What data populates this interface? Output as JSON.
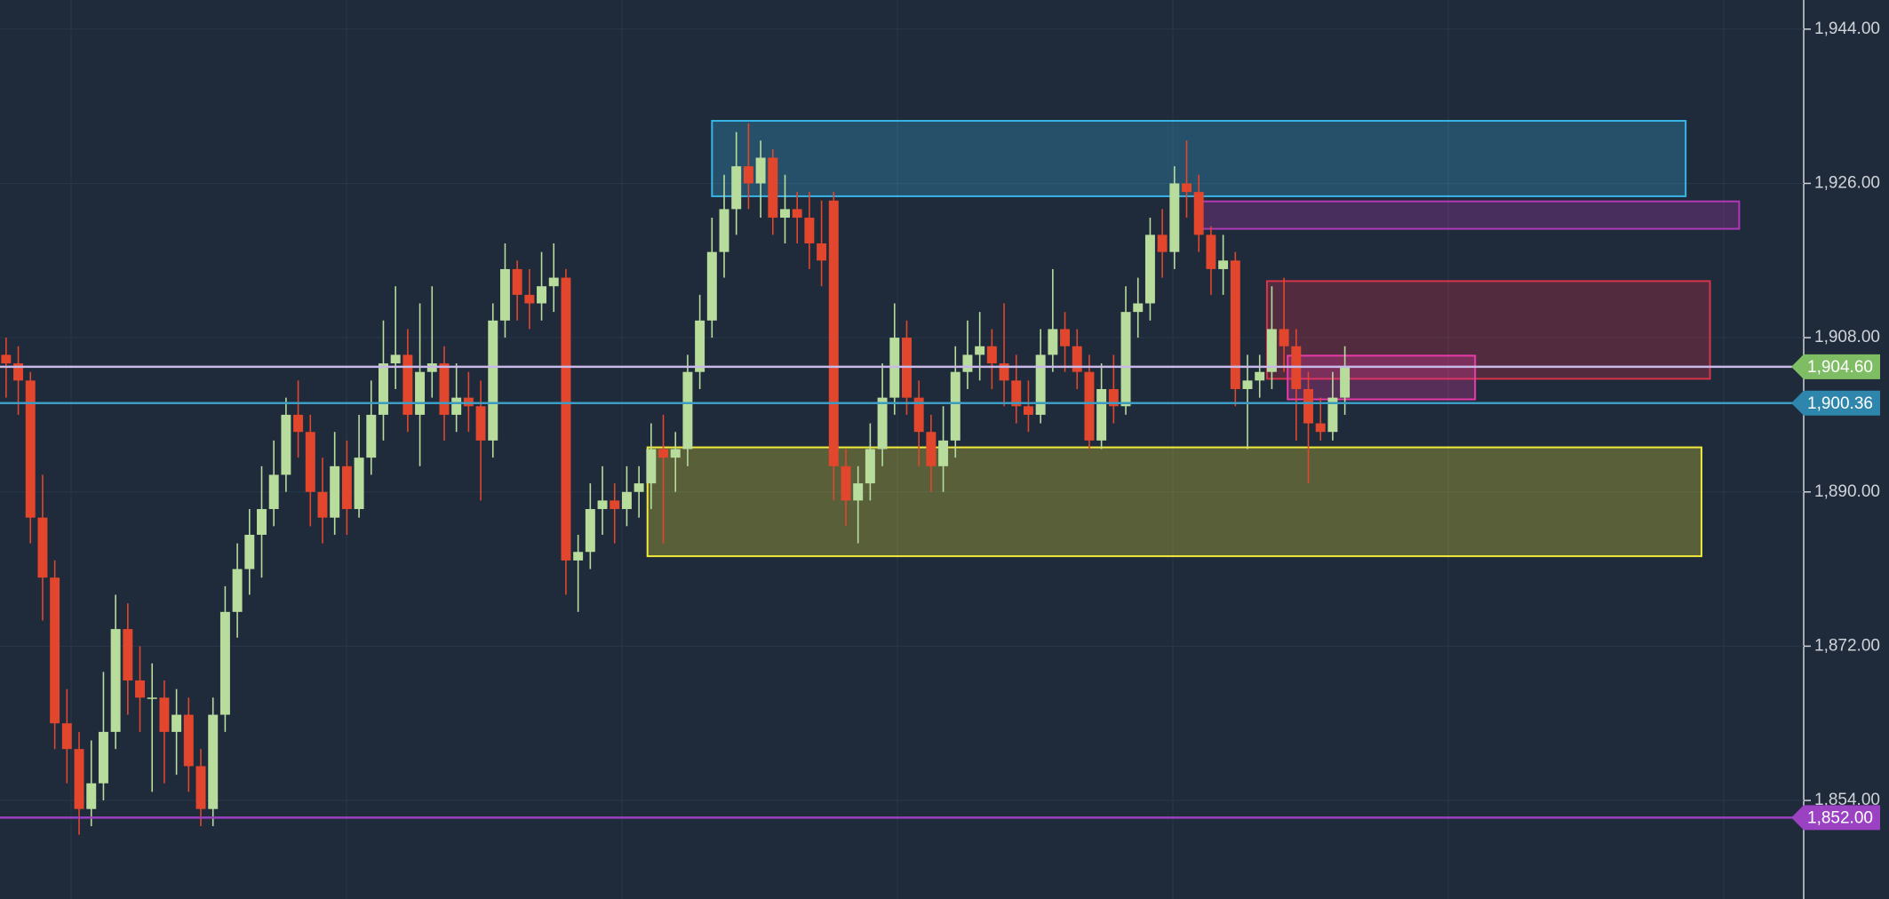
{
  "chart_data": {
    "type": "candlestick",
    "up_color": "#b7dc9c",
    "down_color": "#e2462c",
    "xlim": [
      -0.5,
      147.7
    ],
    "ylim": [
      1842.5,
      1947.4
    ],
    "yticks": [
      {
        "value": 1944,
        "label": "1,944.00"
      },
      {
        "value": 1926,
        "label": "1,926.00"
      },
      {
        "value": 1908,
        "label": "1,908.00"
      },
      {
        "value": 1890,
        "label": "1,890.00"
      },
      {
        "value": 1872,
        "label": "1,872.00"
      },
      {
        "value": 1854,
        "label": "1,854.00"
      }
    ],
    "grid": true,
    "ohlc": [
      [
        1906,
        1908,
        1901,
        1905
      ],
      [
        1905,
        1907,
        1899,
        1903
      ],
      [
        1903,
        1904,
        1884,
        1887
      ],
      [
        1887,
        1892,
        1875,
        1880
      ],
      [
        1880,
        1882,
        1860,
        1863
      ],
      [
        1863,
        1867,
        1856,
        1860
      ],
      [
        1860,
        1862,
        1850,
        1853
      ],
      [
        1853,
        1861,
        1851,
        1856
      ],
      [
        1856,
        1869,
        1854,
        1862
      ],
      [
        1862,
        1878,
        1860,
        1874
      ],
      [
        1874,
        1877,
        1864,
        1868
      ],
      [
        1868,
        1872,
        1862,
        1866
      ],
      [
        1866,
        1870,
        1855,
        1866
      ],
      [
        1866,
        1868,
        1856,
        1862
      ],
      [
        1862,
        1867,
        1857,
        1864
      ],
      [
        1864,
        1866,
        1855,
        1858
      ],
      [
        1858,
        1860,
        1851,
        1853
      ],
      [
        1853,
        1866,
        1851,
        1864
      ],
      [
        1864,
        1879,
        1862,
        1876
      ],
      [
        1876,
        1884,
        1873,
        1881
      ],
      [
        1881,
        1888,
        1878,
        1885
      ],
      [
        1885,
        1893,
        1880,
        1888
      ],
      [
        1888,
        1896,
        1886,
        1892
      ],
      [
        1892,
        1901,
        1890,
        1899
      ],
      [
        1899,
        1903,
        1894,
        1897
      ],
      [
        1897,
        1899,
        1886,
        1890
      ],
      [
        1890,
        1894,
        1884,
        1887
      ],
      [
        1887,
        1897,
        1885,
        1893
      ],
      [
        1893,
        1896,
        1885,
        1888
      ],
      [
        1888,
        1899,
        1887,
        1894
      ],
      [
        1894,
        1903,
        1892,
        1899
      ],
      [
        1899,
        1910,
        1896,
        1905
      ],
      [
        1905,
        1914,
        1902,
        1906
      ],
      [
        1906,
        1909,
        1897,
        1899
      ],
      [
        1899,
        1912,
        1893,
        1904
      ],
      [
        1904,
        1914,
        1901,
        1905
      ],
      [
        1905,
        1907,
        1896,
        1899
      ],
      [
        1899,
        1905,
        1897,
        1901
      ],
      [
        1901,
        1904,
        1897,
        1900
      ],
      [
        1900,
        1903,
        1889,
        1896
      ],
      [
        1896,
        1912,
        1894,
        1910
      ],
      [
        1910,
        1919,
        1908,
        1916
      ],
      [
        1916,
        1917,
        1910,
        1913
      ],
      [
        1913,
        1916,
        1909,
        1912
      ],
      [
        1912,
        1918,
        1910,
        1914
      ],
      [
        1914,
        1919,
        1911,
        1915
      ],
      [
        1915,
        1916,
        1878,
        1882
      ],
      [
        1882,
        1885,
        1876,
        1883
      ],
      [
        1883,
        1891,
        1881,
        1888
      ],
      [
        1888,
        1893,
        1885,
        1889
      ],
      [
        1889,
        1891,
        1884,
        1888
      ],
      [
        1888,
        1893,
        1886,
        1890
      ],
      [
        1890,
        1893,
        1887,
        1891
      ],
      [
        1891,
        1898,
        1888,
        1895
      ],
      [
        1895,
        1899,
        1884,
        1894
      ],
      [
        1894,
        1897,
        1890,
        1895
      ],
      [
        1895,
        1906,
        1893,
        1904
      ],
      [
        1904,
        1913,
        1902,
        1910
      ],
      [
        1910,
        1922,
        1908,
        1918
      ],
      [
        1918,
        1927,
        1915,
        1923
      ],
      [
        1923,
        1932,
        1920,
        1928
      ],
      [
        1928,
        1933,
        1923,
        1926
      ],
      [
        1926,
        1931,
        1922,
        1929
      ],
      [
        1929,
        1930,
        1920,
        1922
      ],
      [
        1922,
        1927,
        1919,
        1923
      ],
      [
        1923,
        1925,
        1919,
        1922
      ],
      [
        1922,
        1925,
        1916,
        1919
      ],
      [
        1919,
        1924,
        1914,
        1917
      ],
      [
        1924,
        1925,
        1889,
        1893
      ],
      [
        1893,
        1895,
        1886,
        1889
      ],
      [
        1889,
        1893,
        1884,
        1891
      ],
      [
        1891,
        1898,
        1889,
        1895
      ],
      [
        1895,
        1905,
        1893,
        1901
      ],
      [
        1901,
        1912,
        1899,
        1908
      ],
      [
        1908,
        1910,
        1899,
        1901
      ],
      [
        1901,
        1903,
        1893,
        1897
      ],
      [
        1897,
        1899,
        1890,
        1893
      ],
      [
        1893,
        1900,
        1890,
        1896
      ],
      [
        1896,
        1907,
        1894,
        1904
      ],
      [
        1904,
        1910,
        1902,
        1906
      ],
      [
        1906,
        1911,
        1903,
        1907
      ],
      [
        1907,
        1909,
        1902,
        1905
      ],
      [
        1905,
        1912,
        1900,
        1903
      ],
      [
        1903,
        1906,
        1898,
        1900
      ],
      [
        1900,
        1903,
        1897,
        1899
      ],
      [
        1899,
        1909,
        1898,
        1906
      ],
      [
        1906,
        1916,
        1904,
        1909
      ],
      [
        1909,
        1911,
        1904,
        1907
      ],
      [
        1907,
        1909,
        1902,
        1904
      ],
      [
        1904,
        1906,
        1895,
        1896
      ],
      [
        1896,
        1905,
        1895,
        1902
      ],
      [
        1902,
        1906,
        1898,
        1900
      ],
      [
        1900,
        1914,
        1899,
        1911
      ],
      [
        1911,
        1915,
        1908,
        1912
      ],
      [
        1912,
        1922,
        1910,
        1920
      ],
      [
        1920,
        1923,
        1915,
        1918
      ],
      [
        1918,
        1928,
        1916,
        1926
      ],
      [
        1926,
        1931,
        1922,
        1925
      ],
      [
        1925,
        1927,
        1918,
        1920
      ],
      [
        1920,
        1921,
        1913,
        1916
      ],
      [
        1916,
        1920,
        1913,
        1917
      ],
      [
        1917,
        1918,
        1900,
        1902
      ],
      [
        1902,
        1906,
        1895,
        1903
      ],
      [
        1903,
        1906,
        1901,
        1904
      ],
      [
        1904,
        1914,
        1902,
        1909
      ],
      [
        1909,
        1915,
        1904,
        1907
      ],
      [
        1907,
        1909,
        1896,
        1902
      ],
      [
        1902,
        1904,
        1891,
        1898
      ],
      [
        1898,
        1901,
        1896,
        1897
      ],
      [
        1897,
        1904,
        1896,
        1901
      ],
      [
        1901,
        1907,
        1899,
        1904.6
      ]
    ],
    "zones": [
      {
        "x": [
          58,
          138
        ],
        "y": [
          1924.5,
          1933.3
        ],
        "color": "#38b4e6"
      },
      {
        "x": [
          98.2,
          142.4
        ],
        "y": [
          1920.7,
          1923.9
        ],
        "color": "#b03ab8"
      },
      {
        "x": [
          103.6,
          140
        ],
        "y": [
          1903.2,
          1914.6
        ],
        "color": "#d8344a"
      },
      {
        "x": [
          105.3,
          120.7
        ],
        "y": [
          1900.8,
          1905.9
        ],
        "color": "#e83aa8"
      },
      {
        "x": [
          52.7,
          139.3
        ],
        "y": [
          1882.5,
          1895.2
        ],
        "color": "#f2ea3a"
      }
    ],
    "hlines": [
      {
        "value": 1904.6,
        "label": "1,904.60",
        "color": "#c9b9e8",
        "badge": "#7fbd64"
      },
      {
        "value": 1900.36,
        "label": "1,900.36",
        "color": "#3d9cc4",
        "badge": "#2f86ad"
      },
      {
        "value": 1852,
        "label": "1,852.00",
        "color": "#9a42c2",
        "badge": "#9a42c2"
      }
    ]
  }
}
